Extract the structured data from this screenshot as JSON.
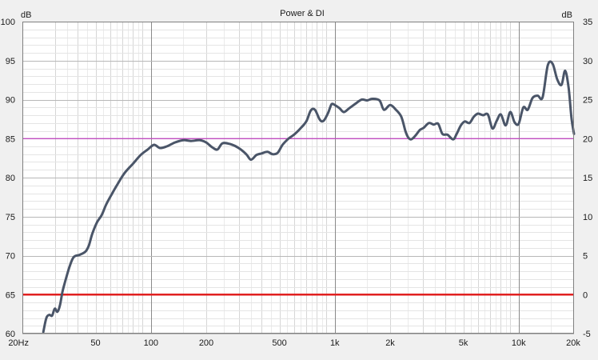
{
  "chart_data": {
    "type": "line",
    "title": "Power & DI",
    "x_scale": "log",
    "xlim": [
      20,
      20000
    ],
    "x_tick_labels": [
      {
        "value": 20,
        "label": "20Hz"
      },
      {
        "value": 50,
        "label": "50"
      },
      {
        "value": 100,
        "label": "100"
      },
      {
        "value": 200,
        "label": "200"
      },
      {
        "value": 500,
        "label": "500"
      },
      {
        "value": 1000,
        "label": "1k"
      },
      {
        "value": 2000,
        "label": "2k"
      },
      {
        "value": 5000,
        "label": "5k"
      },
      {
        "value": 10000,
        "label": "10k"
      },
      {
        "value": 20000,
        "label": "20k"
      }
    ],
    "y_left": {
      "unit": "dB",
      "ylim": [
        60,
        100
      ],
      "ticks": [
        60,
        65,
        70,
        75,
        80,
        85,
        90,
        95,
        100
      ]
    },
    "y_right": {
      "unit": "dB",
      "ylim": [
        -5,
        35
      ],
      "ticks": [
        -5,
        0,
        5,
        10,
        15,
        20,
        25,
        30,
        35
      ]
    },
    "grid": true,
    "reference_lines": [
      {
        "y": 85,
        "color": "#c040c0"
      },
      {
        "y": 65,
        "color": "#e02020"
      }
    ],
    "series": [
      {
        "color": "#4a5568",
        "points": [
          [
            26,
            60.2
          ],
          [
            27,
            62.0
          ],
          [
            28,
            62.4
          ],
          [
            29,
            62.3
          ],
          [
            30,
            63.2
          ],
          [
            31,
            62.8
          ],
          [
            32,
            63.6
          ],
          [
            33,
            65.3
          ],
          [
            34,
            66.5
          ],
          [
            36,
            68.5
          ],
          [
            38,
            69.8
          ],
          [
            41,
            70.1
          ],
          [
            44,
            70.5
          ],
          [
            46,
            71.3
          ],
          [
            48,
            72.8
          ],
          [
            51,
            74.3
          ],
          [
            54,
            75.2
          ],
          [
            57,
            76.5
          ],
          [
            61,
            77.8
          ],
          [
            66,
            79.2
          ],
          [
            72,
            80.6
          ],
          [
            80,
            81.8
          ],
          [
            88,
            82.9
          ],
          [
            96,
            83.6
          ],
          [
            104,
            84.2
          ],
          [
            112,
            83.8
          ],
          [
            122,
            84.0
          ],
          [
            135,
            84.5
          ],
          [
            150,
            84.8
          ],
          [
            165,
            84.7
          ],
          [
            185,
            84.8
          ],
          [
            200,
            84.5
          ],
          [
            215,
            83.9
          ],
          [
            230,
            83.6
          ],
          [
            245,
            84.4
          ],
          [
            270,
            84.3
          ],
          [
            300,
            83.8
          ],
          [
            330,
            83.0
          ],
          [
            350,
            82.3
          ],
          [
            375,
            82.9
          ],
          [
            400,
            83.1
          ],
          [
            430,
            83.3
          ],
          [
            460,
            83.0
          ],
          [
            490,
            83.2
          ],
          [
            520,
            84.2
          ],
          [
            560,
            85.0
          ],
          [
            600,
            85.5
          ],
          [
            650,
            86.3
          ],
          [
            700,
            87.2
          ],
          [
            740,
            88.6
          ],
          [
            780,
            88.7
          ],
          [
            830,
            87.4
          ],
          [
            870,
            87.3
          ],
          [
            920,
            88.3
          ],
          [
            960,
            89.4
          ],
          [
            1000,
            89.3
          ],
          [
            1060,
            88.9
          ],
          [
            1120,
            88.4
          ],
          [
            1200,
            88.9
          ],
          [
            1300,
            89.5
          ],
          [
            1400,
            90.0
          ],
          [
            1500,
            89.9
          ],
          [
            1600,
            90.1
          ],
          [
            1750,
            89.9
          ],
          [
            1850,
            88.7
          ],
          [
            2000,
            89.3
          ],
          [
            2150,
            88.7
          ],
          [
            2300,
            87.8
          ],
          [
            2420,
            86.0
          ],
          [
            2500,
            85.2
          ],
          [
            2600,
            84.9
          ],
          [
            2750,
            85.4
          ],
          [
            2900,
            86.1
          ],
          [
            3050,
            86.4
          ],
          [
            3250,
            87.0
          ],
          [
            3450,
            86.8
          ],
          [
            3650,
            86.9
          ],
          [
            3850,
            85.6
          ],
          [
            4100,
            85.5
          ],
          [
            4400,
            84.9
          ],
          [
            4600,
            85.6
          ],
          [
            4850,
            86.7
          ],
          [
            5100,
            87.2
          ],
          [
            5400,
            87.0
          ],
          [
            5700,
            87.8
          ],
          [
            6000,
            88.2
          ],
          [
            6400,
            88.0
          ],
          [
            6800,
            88.1
          ],
          [
            7200,
            86.3
          ],
          [
            7600,
            87.3
          ],
          [
            8000,
            88.1
          ],
          [
            8500,
            86.7
          ],
          [
            9000,
            88.4
          ],
          [
            9500,
            87.1
          ],
          [
            10000,
            86.9
          ],
          [
            10600,
            89.0
          ],
          [
            11200,
            88.7
          ],
          [
            11900,
            90.2
          ],
          [
            12700,
            90.5
          ],
          [
            13500,
            90.3
          ],
          [
            14400,
            94.4
          ],
          [
            15300,
            94.6
          ],
          [
            16200,
            92.6
          ],
          [
            17100,
            91.9
          ],
          [
            17900,
            93.7
          ],
          [
            18700,
            91.5
          ],
          [
            19400,
            87.5
          ],
          [
            20000,
            85.6
          ]
        ]
      }
    ]
  }
}
